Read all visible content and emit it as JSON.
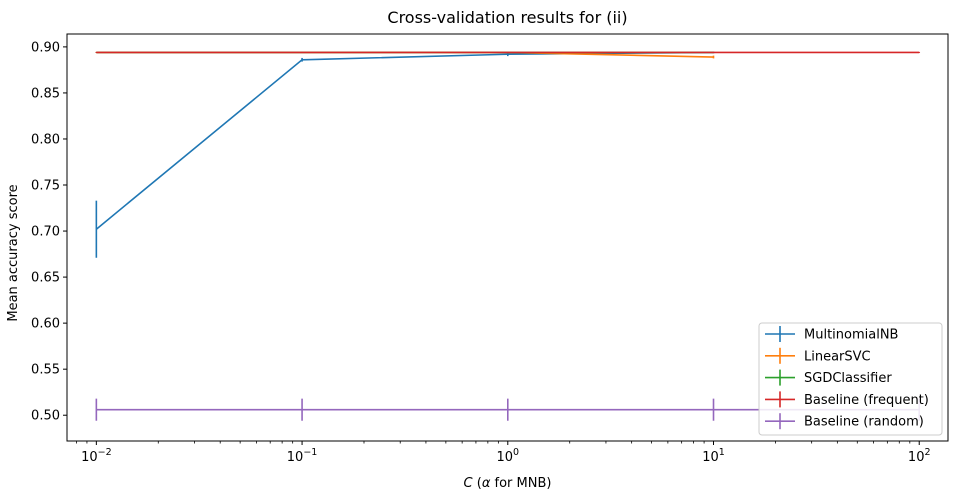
{
  "chart_data": {
    "type": "line",
    "title": "Cross-validation results for (ii)",
    "xlabel": {
      "var": "C",
      "open": " (",
      "alpha": "α",
      "rest": " for MNB)"
    },
    "ylabel": "Mean accuracy score",
    "xscale": "log",
    "xlim": [
      0.0072,
      138
    ],
    "ylim": [
      0.472,
      0.914
    ],
    "x_ticks": [
      {
        "value": 0.01,
        "base": "10",
        "exp": "−2"
      },
      {
        "value": 0.1,
        "base": "10",
        "exp": "−1"
      },
      {
        "value": 1,
        "base": "10",
        "exp": "0"
      },
      {
        "value": 10,
        "base": "10",
        "exp": "1"
      },
      {
        "value": 100,
        "base": "10",
        "exp": "2"
      }
    ],
    "y_ticks": [
      "0.50",
      "0.55",
      "0.60",
      "0.65",
      "0.70",
      "0.75",
      "0.80",
      "0.85",
      "0.90"
    ],
    "grid": false,
    "legend_position": "lower-right",
    "series": [
      {
        "name": "MultinomialNB",
        "color": "#1f77b4",
        "x": [
          0.01,
          0.1,
          1,
          10
        ],
        "y": [
          0.702,
          0.886,
          0.892,
          0.894
        ],
        "err": [
          0.031,
          0.002,
          0.002,
          0.001
        ]
      },
      {
        "name": "LinearSVC",
        "color": "#ff7f0e",
        "x": [
          0.01,
          0.1,
          1,
          10
        ],
        "y": [
          0.894,
          0.894,
          0.894,
          0.889
        ],
        "err": [
          0.0005,
          0.0005,
          0.0005,
          0.0015
        ]
      },
      {
        "name": "SGDClassifier",
        "color": "#2ca02c",
        "x": [
          0.01,
          0.1,
          1,
          10
        ],
        "y": [
          0.894,
          0.894,
          0.894,
          0.894
        ],
        "err": [
          0.0005,
          0.0005,
          0.0005,
          0.0005
        ]
      },
      {
        "name": "Baseline (frequent)",
        "color": "#d62728",
        "x": [
          0.01,
          0.1,
          1,
          10,
          100
        ],
        "y": [
          0.894,
          0.894,
          0.894,
          0.894,
          0.894
        ],
        "err": [
          0.0005,
          0.0005,
          0.0005,
          0.0005,
          0.0005
        ]
      },
      {
        "name": "Baseline (random)",
        "color": "#9467bd",
        "x": [
          0.01,
          0.1,
          1,
          10,
          100
        ],
        "y": [
          0.506,
          0.506,
          0.506,
          0.506,
          0.506
        ],
        "err": [
          0.012,
          0.012,
          0.012,
          0.012,
          0.012
        ]
      }
    ]
  }
}
